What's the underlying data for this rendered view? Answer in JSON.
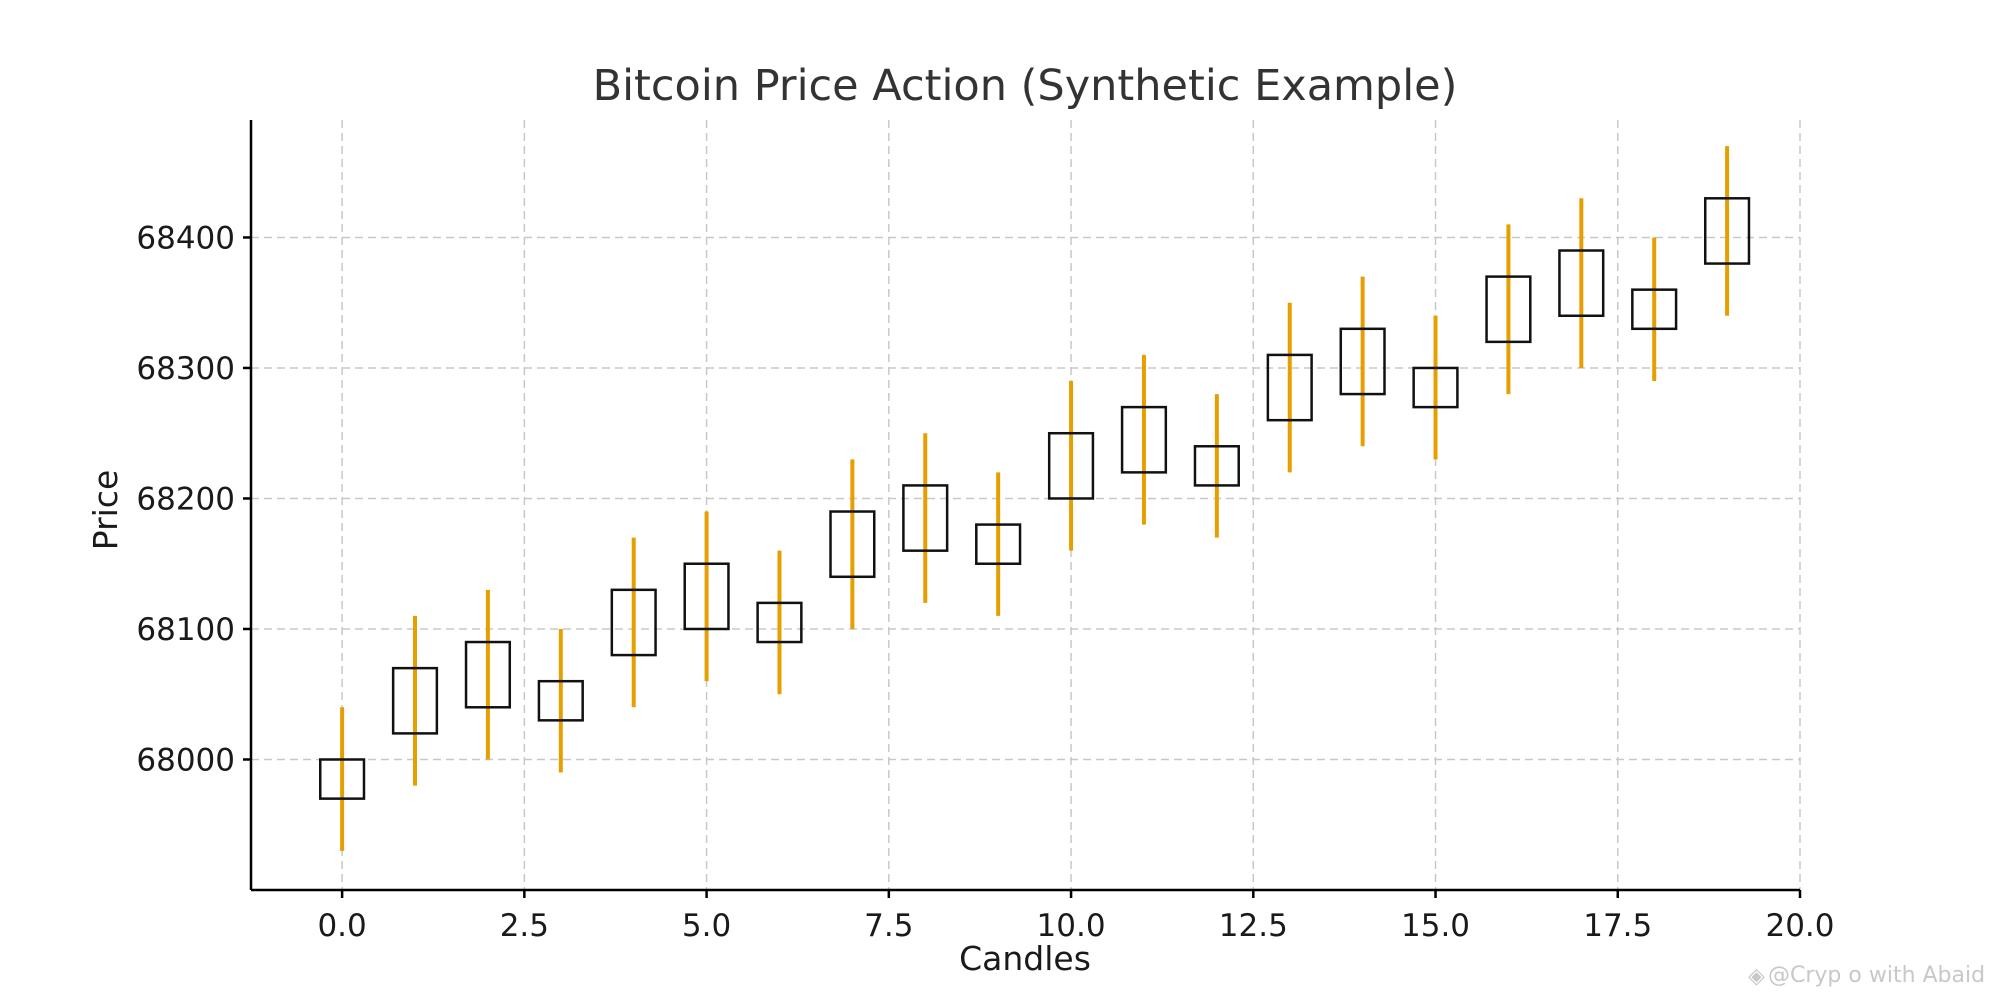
{
  "chart_data": {
    "type": "candlestick",
    "title": "Bitcoin Price Action (Synthetic Example)",
    "xlabel": "Candles",
    "ylabel": "Price",
    "xlim": [
      -1.25,
      20.0
    ],
    "ylim": [
      67900,
      68490
    ],
    "x_ticks": [
      0.0,
      2.5,
      5.0,
      7.5,
      10.0,
      12.5,
      15.0,
      17.5,
      20.0
    ],
    "x_tick_labels": [
      "0.0",
      "2.5",
      "5.0",
      "7.5",
      "10.0",
      "12.5",
      "15.0",
      "17.5",
      "20.0"
    ],
    "y_ticks": [
      68000,
      68100,
      68200,
      68300,
      68400
    ],
    "y_tick_labels": [
      "68000",
      "68100",
      "68200",
      "68300",
      "68400"
    ],
    "grid": true,
    "wick_color": "#e69f00",
    "body_color": "#111111",
    "candles": [
      {
        "x": 0,
        "open": 67970,
        "close": 68000,
        "high": 68040,
        "low": 67930
      },
      {
        "x": 1,
        "open": 68020,
        "close": 68070,
        "high": 68110,
        "low": 67980
      },
      {
        "x": 2,
        "open": 68040,
        "close": 68090,
        "high": 68130,
        "low": 68000
      },
      {
        "x": 3,
        "open": 68030,
        "close": 68060,
        "high": 68100,
        "low": 67990
      },
      {
        "x": 4,
        "open": 68080,
        "close": 68130,
        "high": 68170,
        "low": 68040
      },
      {
        "x": 5,
        "open": 68100,
        "close": 68150,
        "high": 68190,
        "low": 68060
      },
      {
        "x": 6,
        "open": 68090,
        "close": 68120,
        "high": 68160,
        "low": 68050
      },
      {
        "x": 7,
        "open": 68140,
        "close": 68190,
        "high": 68230,
        "low": 68100
      },
      {
        "x": 8,
        "open": 68160,
        "close": 68210,
        "high": 68250,
        "low": 68120
      },
      {
        "x": 9,
        "open": 68150,
        "close": 68180,
        "high": 68220,
        "low": 68110
      },
      {
        "x": 10,
        "open": 68200,
        "close": 68250,
        "high": 68290,
        "low": 68160
      },
      {
        "x": 11,
        "open": 68220,
        "close": 68270,
        "high": 68310,
        "low": 68180
      },
      {
        "x": 12,
        "open": 68210,
        "close": 68240,
        "high": 68280,
        "low": 68170
      },
      {
        "x": 13,
        "open": 68260,
        "close": 68310,
        "high": 68350,
        "low": 68220
      },
      {
        "x": 14,
        "open": 68280,
        "close": 68330,
        "high": 68370,
        "low": 68240
      },
      {
        "x": 15,
        "open": 68270,
        "close": 68300,
        "high": 68340,
        "low": 68230
      },
      {
        "x": 16,
        "open": 68320,
        "close": 68370,
        "high": 68410,
        "low": 68280
      },
      {
        "x": 17,
        "open": 68340,
        "close": 68390,
        "high": 68430,
        "low": 68300
      },
      {
        "x": 18,
        "open": 68330,
        "close": 68360,
        "high": 68400,
        "low": 68290
      },
      {
        "x": 19,
        "open": 68380,
        "close": 68430,
        "high": 68470,
        "low": 68340
      }
    ]
  },
  "watermark": {
    "text": "@Cryp  o with Abaid"
  }
}
